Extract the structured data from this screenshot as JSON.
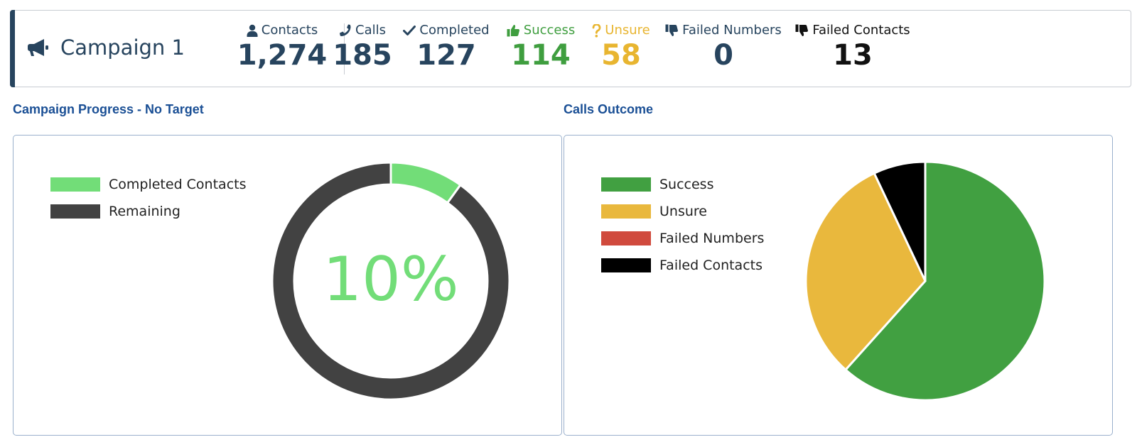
{
  "header": {
    "campaign_icon": "megaphone-icon",
    "campaign_name": "Campaign 1",
    "stats": [
      {
        "key": "contacts",
        "label": "Contacts",
        "value": "1,274",
        "icon": "user-icon",
        "label_color": "#27445e",
        "value_color": "#27445e"
      },
      {
        "key": "calls",
        "label": "Calls",
        "value": "185",
        "icon": "phone-icon",
        "label_color": "#27445e",
        "value_color": "#27445e"
      },
      {
        "key": "completed",
        "label": "Completed",
        "value": "127",
        "icon": "check-icon",
        "label_color": "#27445e",
        "value_color": "#27445e"
      },
      {
        "key": "success",
        "label": "Success",
        "value": "114",
        "icon": "thumbs-up-icon",
        "label_color": "#3f9e3f",
        "value_color": "#3f9e3f"
      },
      {
        "key": "unsure",
        "label": "Unsure",
        "value": "58",
        "icon": "question-icon",
        "label_color": "#e8b530",
        "value_color": "#e8b530"
      },
      {
        "key": "failed_numbers",
        "label": "Failed Numbers",
        "value": "0",
        "icon": "thumbs-down-icon",
        "label_color": "#27445e",
        "value_color": "#27445e"
      },
      {
        "key": "failed_contacts",
        "label": "Failed Contacts",
        "value": "13",
        "icon": "thumbs-down-icon",
        "label_color": "#111111",
        "value_color": "#111111"
      }
    ]
  },
  "progress_panel": {
    "title": "Campaign Progress - No Target",
    "center_label": "10%"
  },
  "outcome_panel": {
    "title": "Calls Outcome"
  },
  "chart_data": [
    {
      "type": "pie",
      "style": "doughnut",
      "title": "Campaign Progress - No Target",
      "categories": [
        "Completed Contacts",
        "Remaining"
      ],
      "values": [
        127,
        1147
      ],
      "colors": [
        "#72dd78",
        "#424242"
      ],
      "legend": "top-left"
    },
    {
      "type": "pie",
      "title": "Calls Outcome",
      "categories": [
        "Success",
        "Unsure",
        "Failed Numbers",
        "Failed Contacts"
      ],
      "values": [
        114,
        58,
        0,
        13
      ],
      "colors": [
        "#41a041",
        "#e9b83d",
        "#d04a3d",
        "#000000"
      ],
      "legend": "top-left"
    }
  ]
}
